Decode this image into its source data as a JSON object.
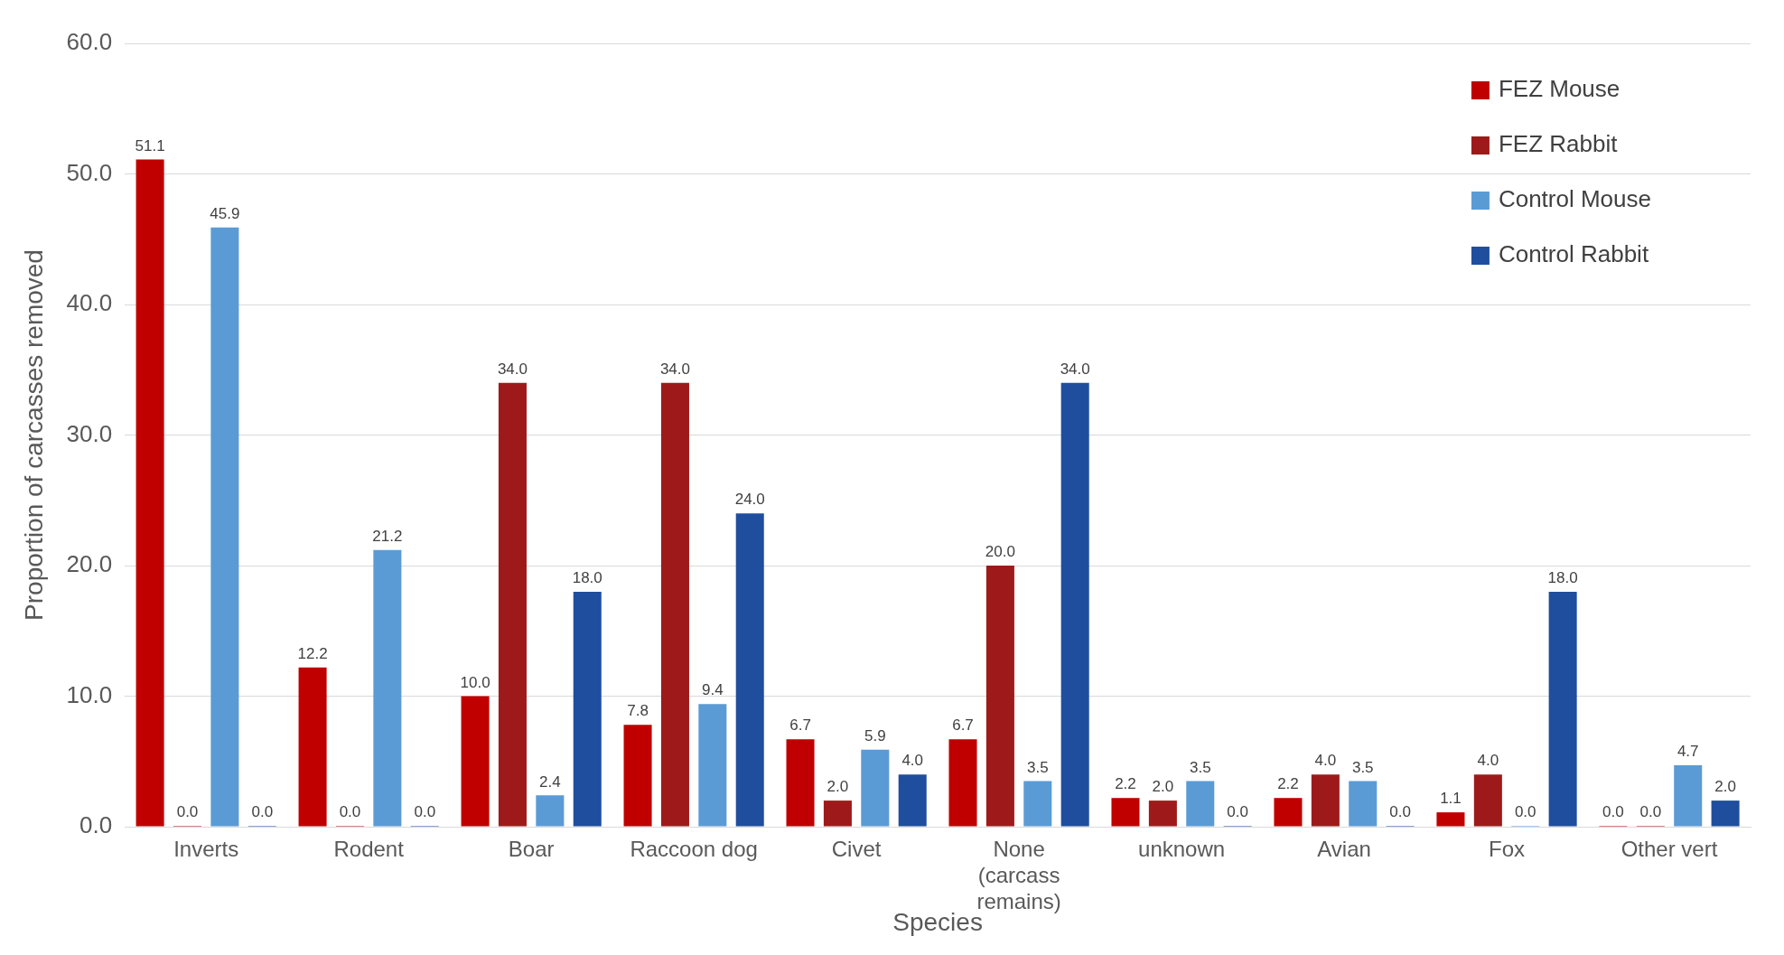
{
  "chart_data": {
    "type": "bar",
    "xlabel": "Species",
    "ylabel": "Proportion of carcasses removed",
    "categories": [
      "Inverts",
      "Rodent",
      "Boar",
      "Raccoon dog",
      "Civet",
      "None (carcass remains)",
      "unknown",
      "Avian",
      "Fox",
      "Other vert"
    ],
    "series": [
      {
        "name": "FEZ Mouse",
        "color": "#c00000",
        "values": [
          51.1,
          12.2,
          10.0,
          7.8,
          6.7,
          6.7,
          2.2,
          2.2,
          1.1,
          0.0
        ],
        "value_labels": [
          "51.1",
          "12.2",
          "10.0",
          "7.8",
          "6.7",
          "6.7",
          "2.2",
          "2.2",
          "1.1",
          "0.0"
        ]
      },
      {
        "name": "FEZ Rabbit",
        "color": "#9e1a1a",
        "values": [
          0.0,
          0.0,
          34.0,
          34.0,
          2.0,
          20.0,
          2.0,
          4.0,
          4.0,
          0.0
        ],
        "value_labels": [
          "0.0",
          "0.0",
          "34.0",
          "34.0",
          "2.0",
          "20.0",
          "2.0",
          "4.0",
          "4.0",
          "0.0"
        ]
      },
      {
        "name": "Control Mouse",
        "color": "#5b9bd5",
        "values": [
          45.9,
          21.2,
          2.4,
          9.4,
          5.9,
          3.5,
          3.5,
          3.5,
          0.0,
          4.7
        ],
        "value_labels": [
          "45.9",
          "21.2",
          "2.4",
          "9.4",
          "5.9",
          "3.5",
          "3.5",
          "3.5",
          "0.0",
          "4.7"
        ]
      },
      {
        "name": "Control Rabbit",
        "color": "#1f4e9e",
        "values": [
          0.0,
          0.0,
          18.0,
          24.0,
          4.0,
          34.0,
          0.0,
          0.0,
          18.0,
          2.0
        ],
        "value_labels": [
          "0.0",
          "0.0",
          "18.0",
          "24.0",
          "4.0",
          "34.0",
          "0.0",
          "0.0",
          "18.0",
          "2.0"
        ]
      }
    ],
    "ylim": [
      0,
      60
    ],
    "yticks": [
      {
        "value": 0,
        "label": "0.0"
      },
      {
        "value": 10,
        "label": "10.0"
      },
      {
        "value": 20,
        "label": "20.0"
      },
      {
        "value": 30,
        "label": "30.0"
      },
      {
        "value": 40,
        "label": "40.0"
      },
      {
        "value": 50,
        "label": "50.0"
      },
      {
        "value": 60,
        "label": "60.0"
      }
    ],
    "grid": "y",
    "legend": "top right"
  }
}
